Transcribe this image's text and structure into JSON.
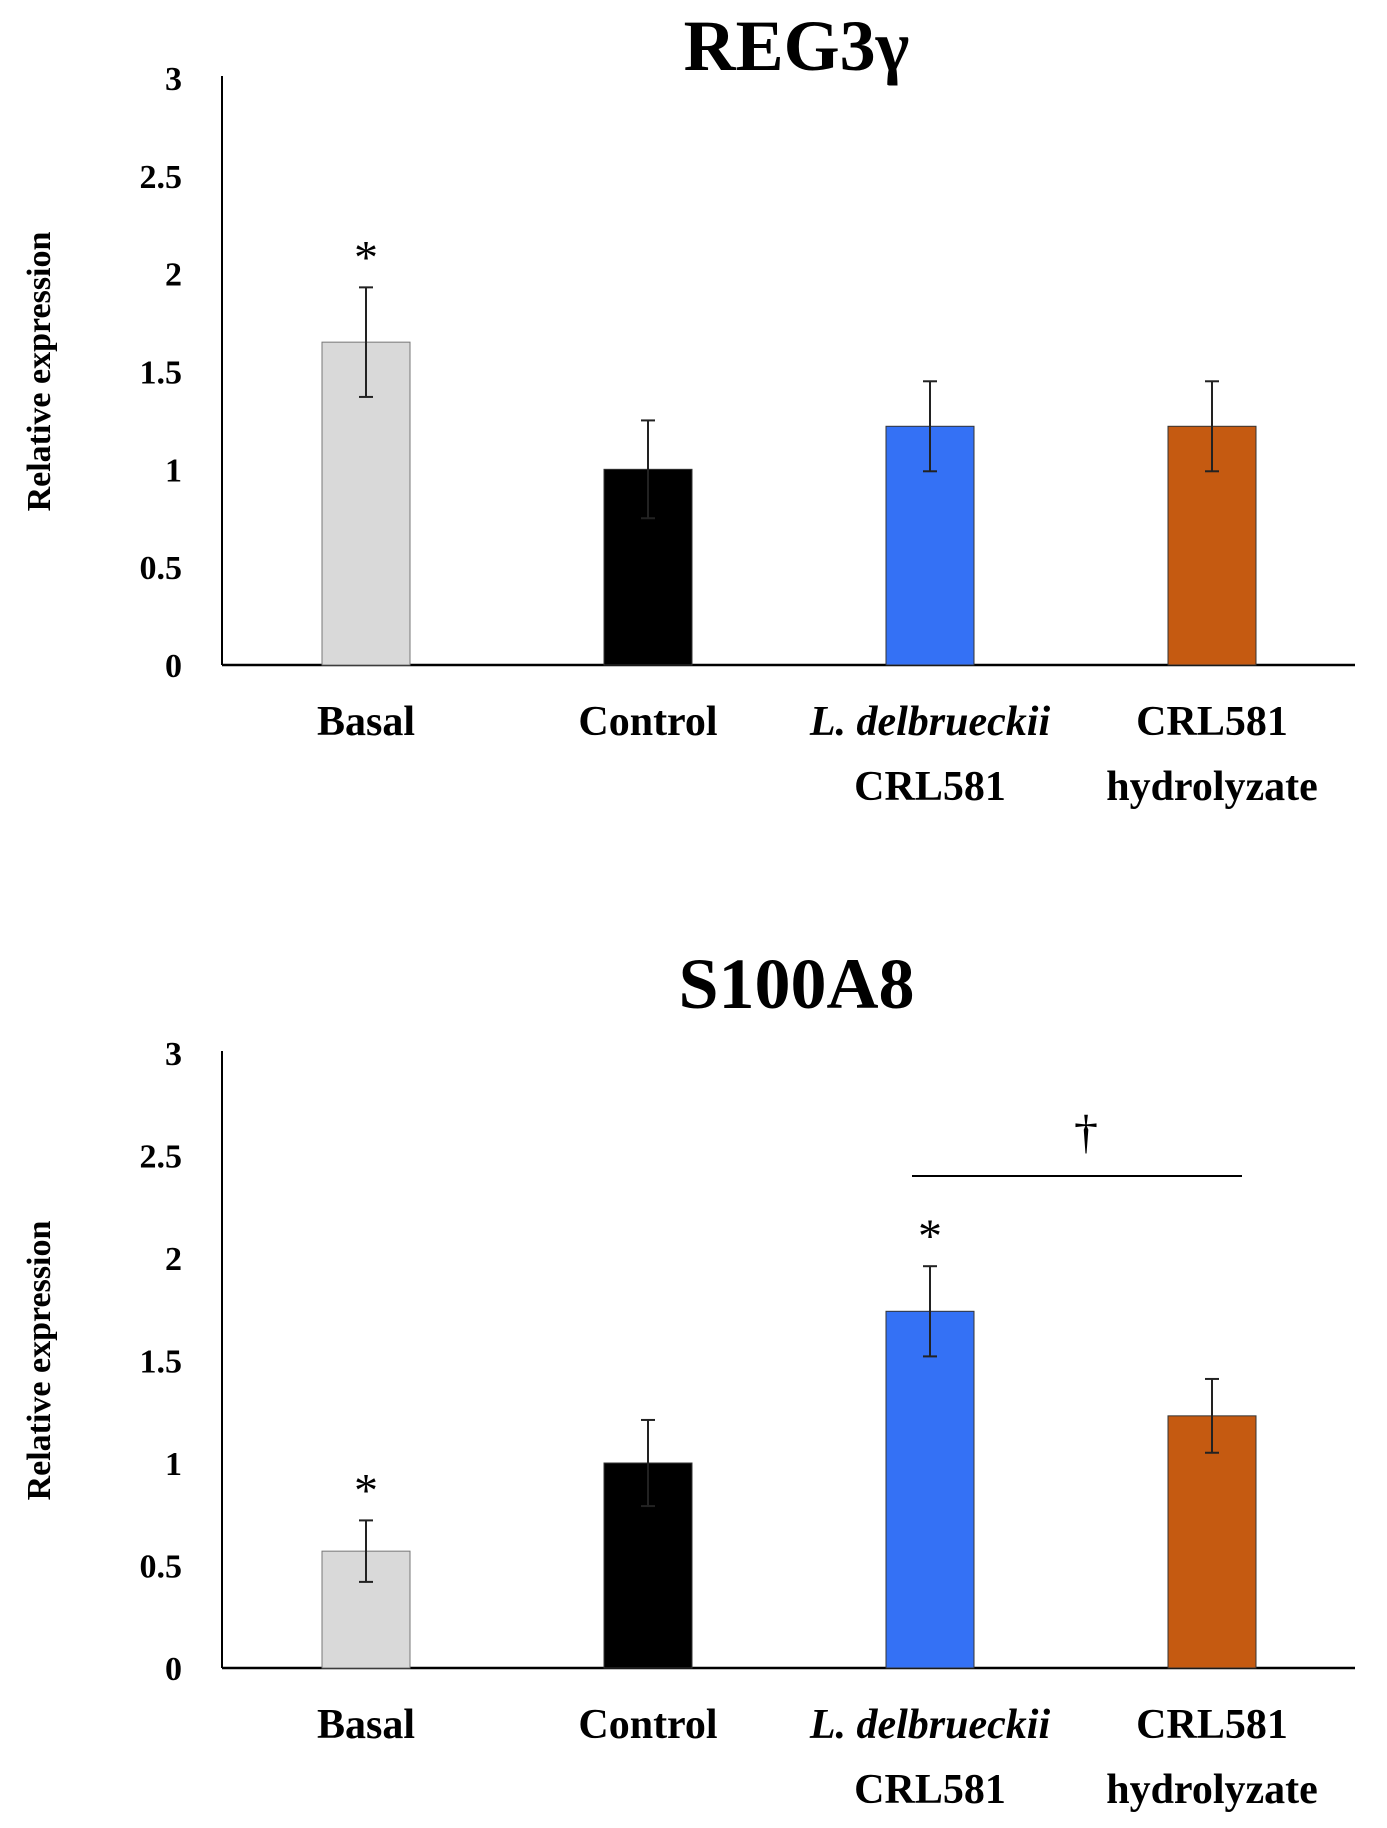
{
  "chart_data": [
    {
      "type": "bar",
      "title": "REG3γ",
      "ylabel": "Relative expression",
      "xlabel": "",
      "ylim": [
        0,
        3
      ],
      "yticks": [
        "0",
        "0.5",
        "1",
        "1.5",
        "2",
        "2.5",
        "3"
      ],
      "categories": [
        {
          "line1": "Basal",
          "line2": "",
          "italic1": false
        },
        {
          "line1": "Control",
          "line2": "",
          "italic1": false
        },
        {
          "line1": "L. delbrueckii",
          "line2": "CRL581",
          "italic1": true
        },
        {
          "line1": "CRL581",
          "line2": "hydrolyzate",
          "italic1": false
        }
      ],
      "values": [
        1.65,
        1.0,
        1.22,
        1.22
      ],
      "errors": [
        0.28,
        0.25,
        0.23,
        0.23
      ],
      "colors": [
        "#d9d9d9",
        "#000000",
        "#3471f5",
        "#c55a11"
      ],
      "markers": [
        "*",
        "",
        "",
        ""
      ],
      "bracket": null
    },
    {
      "type": "bar",
      "title": "S100A8",
      "ylabel": "Relative expression",
      "xlabel": "",
      "ylim": [
        0,
        3
      ],
      "yticks": [
        "0",
        "0.5",
        "1",
        "1.5",
        "2",
        "2.5",
        "3"
      ],
      "categories": [
        {
          "line1": "Basal",
          "line2": "",
          "italic1": false
        },
        {
          "line1": "Control",
          "line2": "",
          "italic1": false
        },
        {
          "line1": "L. delbrueckii",
          "line2": "CRL581",
          "italic1": true
        },
        {
          "line1": "CRL581",
          "line2": "hydrolyzate",
          "italic1": false
        }
      ],
      "values": [
        0.57,
        1.0,
        1.74,
        1.23
      ],
      "errors": [
        0.15,
        0.21,
        0.22,
        0.18
      ],
      "colors": [
        "#d9d9d9",
        "#000000",
        "#3471f5",
        "#c55a11"
      ],
      "markers": [
        "*",
        "",
        "*",
        ""
      ],
      "bracket": {
        "from": 2,
        "to": 3,
        "value": 2.4,
        "label": "†"
      }
    }
  ]
}
